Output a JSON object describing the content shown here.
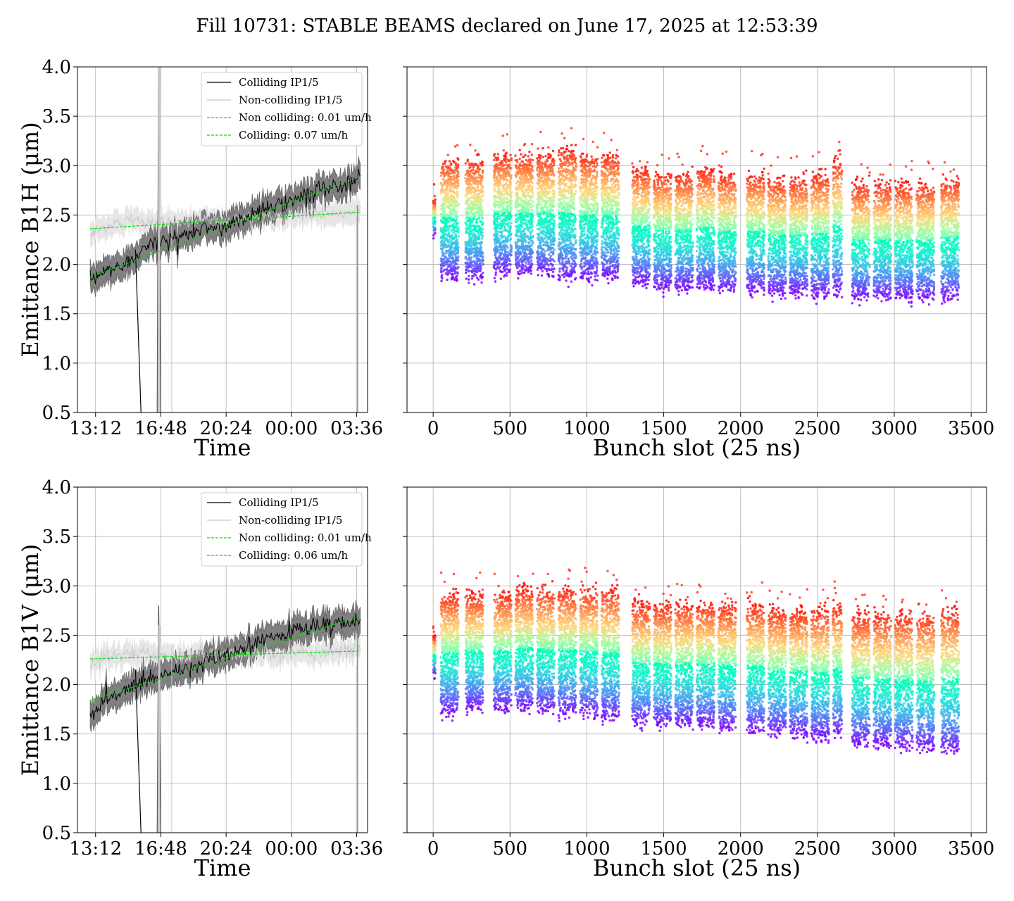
{
  "figure": {
    "title": "Fill 10731: STABLE BEAMS declared on June 17, 2025 at 12:53:39"
  },
  "colors": {
    "colliding": "#000000",
    "colliding_band": "#808080",
    "non_colliding": "#c8c8c8",
    "non_colliding_band": "#e6e6e6",
    "fit": "#00e000",
    "grid": "#b0b0b0"
  },
  "chart_data": [
    {
      "type": "line",
      "row": "B1H",
      "ylabel": "Emittance B1H (μm)",
      "xlabel": "Time",
      "x_tick_labels": [
        "13:12",
        "16:48",
        "20:24",
        "00:00",
        "03:36"
      ],
      "x_tick_hours": [
        0,
        3.6,
        7.2,
        10.8,
        14.4
      ],
      "xlim_hours": [
        -1.0,
        15.0
      ],
      "ylim": [
        0.5,
        4.0
      ],
      "yticks": [
        "0.5",
        "1.0",
        "1.5",
        "2.0",
        "2.5",
        "3.0",
        "3.5",
        "4.0"
      ],
      "grid": true,
      "legend_position": "top-right",
      "legend": [
        "Colliding IP1/5",
        "Non-colliding IP1/5",
        "Non colliding: 0.01 um/h",
        "Colliding: 0.07 um/h"
      ],
      "series": [
        {
          "name": "Colliding IP1/5",
          "x": [
            -0.3,
            0.5,
            1.0,
            1.5,
            2.0,
            2.2,
            3.0,
            4.0,
            5.0,
            6.0,
            7.0,
            8.0,
            9.0,
            10.0,
            11.0,
            12.0,
            13.0,
            14.0,
            14.6
          ],
          "y": [
            1.82,
            1.93,
            1.96,
            2.0,
            2.05,
            2.12,
            2.2,
            2.25,
            2.3,
            2.37,
            2.38,
            2.45,
            2.55,
            2.6,
            2.65,
            2.72,
            2.78,
            2.85,
            2.88
          ]
        },
        {
          "name": "Non-colliding IP1/5",
          "x": [
            -0.3,
            1.0,
            2.0,
            3.0,
            4.0,
            5.0,
            6.0,
            7.0,
            8.0,
            9.0,
            10.0,
            11.0,
            12.0,
            13.0,
            14.0,
            14.6
          ],
          "y": [
            2.32,
            2.4,
            2.45,
            2.42,
            2.43,
            2.42,
            2.45,
            2.44,
            2.46,
            2.5,
            2.47,
            2.5,
            2.52,
            2.5,
            2.53,
            2.52
          ]
        },
        {
          "name": "Non colliding: 0.01 um/h",
          "x": [
            -0.3,
            14.6
          ],
          "y": [
            2.36,
            2.53
          ]
        },
        {
          "name": "Colliding: 0.07 um/h",
          "x": [
            -0.3,
            14.6
          ],
          "y": [
            1.87,
            2.89
          ]
        }
      ]
    },
    {
      "type": "scatter",
      "row": "B1H",
      "xlabel": "Bunch slot (25 ns)",
      "x_tick_labels": [
        "0",
        "500",
        "1000",
        "1500",
        "2000",
        "2500",
        "3000",
        "3500"
      ],
      "xlim": [
        -170,
        3600
      ],
      "ylim": [
        0.5,
        4.0
      ],
      "grid": true,
      "colormap": "rainbow",
      "trains": [
        {
          "start": 0,
          "end": 15,
          "low": 2.3,
          "high": 2.65,
          "mode": 2.45
        },
        {
          "start": 50,
          "end": 165,
          "low": 1.85,
          "high": 3.1
        },
        {
          "start": 210,
          "end": 325,
          "low": 1.85,
          "high": 3.1
        },
        {
          "start": 395,
          "end": 510,
          "low": 1.9,
          "high": 3.15
        },
        {
          "start": 535,
          "end": 650,
          "low": 1.9,
          "high": 3.15
        },
        {
          "start": 675,
          "end": 790,
          "low": 1.9,
          "high": 3.15
        },
        {
          "start": 815,
          "end": 930,
          "low": 1.85,
          "high": 3.2
        },
        {
          "start": 955,
          "end": 1070,
          "low": 1.85,
          "high": 3.15
        },
        {
          "start": 1095,
          "end": 1210,
          "low": 1.85,
          "high": 3.15
        },
        {
          "start": 1295,
          "end": 1410,
          "low": 1.8,
          "high": 3.0
        },
        {
          "start": 1435,
          "end": 1550,
          "low": 1.75,
          "high": 2.95
        },
        {
          "start": 1575,
          "end": 1690,
          "low": 1.75,
          "high": 2.95
        },
        {
          "start": 1715,
          "end": 1830,
          "low": 1.75,
          "high": 3.0
        },
        {
          "start": 1855,
          "end": 1970,
          "low": 1.72,
          "high": 2.95
        },
        {
          "start": 2040,
          "end": 2155,
          "low": 1.72,
          "high": 2.95
        },
        {
          "start": 2180,
          "end": 2295,
          "low": 1.7,
          "high": 2.9
        },
        {
          "start": 2320,
          "end": 2435,
          "low": 1.7,
          "high": 2.9
        },
        {
          "start": 2460,
          "end": 2575,
          "low": 1.68,
          "high": 2.95
        },
        {
          "start": 2600,
          "end": 2660,
          "low": 1.7,
          "high": 3.1
        },
        {
          "start": 2725,
          "end": 2840,
          "low": 1.65,
          "high": 2.85
        },
        {
          "start": 2865,
          "end": 2980,
          "low": 1.65,
          "high": 2.85
        },
        {
          "start": 3005,
          "end": 3120,
          "low": 1.65,
          "high": 2.85
        },
        {
          "start": 3145,
          "end": 3260,
          "low": 1.65,
          "high": 2.85
        },
        {
          "start": 3305,
          "end": 3420,
          "low": 1.65,
          "high": 2.9
        }
      ]
    },
    {
      "type": "line",
      "row": "B1V",
      "ylabel": "Emittance B1V (μm)",
      "xlabel": "Time",
      "x_tick_labels": [
        "13:12",
        "16:48",
        "20:24",
        "00:00",
        "03:36"
      ],
      "x_tick_hours": [
        0,
        3.6,
        7.2,
        10.8,
        14.4
      ],
      "xlim_hours": [
        -1.0,
        15.0
      ],
      "ylim": [
        0.5,
        4.0
      ],
      "yticks": [
        "0.5",
        "1.0",
        "1.5",
        "2.0",
        "2.5",
        "3.0",
        "3.5",
        "4.0"
      ],
      "grid": true,
      "legend_position": "top-right",
      "legend": [
        "Colliding IP1/5",
        "Non-colliding IP1/5",
        "Non colliding: 0.01 um/h",
        "Colliding: 0.06 um/h"
      ],
      "series": [
        {
          "name": "Colliding IP1/5",
          "x": [
            -0.3,
            0.5,
            1.0,
            1.5,
            2.0,
            2.2,
            3.0,
            4.0,
            5.0,
            6.0,
            7.0,
            8.0,
            9.0,
            10.0,
            11.0,
            12.0,
            13.0,
            14.0,
            14.6
          ],
          "y": [
            1.68,
            1.85,
            1.88,
            1.92,
            1.98,
            2.0,
            2.05,
            2.1,
            2.15,
            2.22,
            2.28,
            2.35,
            2.42,
            2.48,
            2.55,
            2.58,
            2.6,
            2.63,
            2.65
          ]
        },
        {
          "name": "Non-colliding IP1/5",
          "x": [
            -0.3,
            1.0,
            2.0,
            3.0,
            4.0,
            5.0,
            6.0,
            7.0,
            8.0,
            9.0,
            10.0,
            11.0,
            12.0,
            13.0,
            14.0,
            14.6
          ],
          "y": [
            2.22,
            2.3,
            2.33,
            2.3,
            2.28,
            2.29,
            2.3,
            2.31,
            2.3,
            2.32,
            2.31,
            2.33,
            2.32,
            2.33,
            2.34,
            2.33
          ]
        },
        {
          "name": "Non colliding: 0.01 um/h",
          "x": [
            -0.3,
            14.6
          ],
          "y": [
            2.26,
            2.34
          ]
        },
        {
          "name": "Colliding: 0.06 um/h",
          "x": [
            -0.3,
            14.6
          ],
          "y": [
            1.84,
            2.69
          ]
        }
      ]
    },
    {
      "type": "scatter",
      "row": "B1V",
      "xlabel": "Bunch slot (25 ns)",
      "x_tick_labels": [
        "0",
        "500",
        "1000",
        "1500",
        "2000",
        "2500",
        "3000",
        "3500"
      ],
      "xlim": [
        -170,
        3600
      ],
      "ylim": [
        0.5,
        4.0
      ],
      "grid": true,
      "colormap": "rainbow",
      "trains": [
        {
          "start": 0,
          "end": 15,
          "low": 2.1,
          "high": 2.5,
          "mode": 2.35
        },
        {
          "start": 50,
          "end": 165,
          "low": 1.7,
          "high": 2.95
        },
        {
          "start": 210,
          "end": 325,
          "low": 1.75,
          "high": 2.95
        },
        {
          "start": 395,
          "end": 510,
          "low": 1.75,
          "high": 2.95
        },
        {
          "start": 535,
          "end": 650,
          "low": 1.75,
          "high": 3.0
        },
        {
          "start": 675,
          "end": 790,
          "low": 1.72,
          "high": 3.0
        },
        {
          "start": 815,
          "end": 930,
          "low": 1.7,
          "high": 3.0
        },
        {
          "start": 955,
          "end": 1070,
          "low": 1.68,
          "high": 3.0
        },
        {
          "start": 1095,
          "end": 1210,
          "low": 1.65,
          "high": 3.0
        },
        {
          "start": 1295,
          "end": 1410,
          "low": 1.6,
          "high": 2.85
        },
        {
          "start": 1435,
          "end": 1550,
          "low": 1.58,
          "high": 2.85
        },
        {
          "start": 1575,
          "end": 1690,
          "low": 1.58,
          "high": 2.85
        },
        {
          "start": 1715,
          "end": 1830,
          "low": 1.58,
          "high": 2.85
        },
        {
          "start": 1855,
          "end": 1970,
          "low": 1.55,
          "high": 2.85
        },
        {
          "start": 2040,
          "end": 2155,
          "low": 1.52,
          "high": 2.85
        },
        {
          "start": 2180,
          "end": 2295,
          "low": 1.5,
          "high": 2.8
        },
        {
          "start": 2320,
          "end": 2435,
          "low": 1.48,
          "high": 2.8
        },
        {
          "start": 2460,
          "end": 2575,
          "low": 1.45,
          "high": 2.8
        },
        {
          "start": 2600,
          "end": 2660,
          "low": 1.48,
          "high": 2.85
        },
        {
          "start": 2725,
          "end": 2840,
          "low": 1.4,
          "high": 2.75
        },
        {
          "start": 2865,
          "end": 2980,
          "low": 1.38,
          "high": 2.75
        },
        {
          "start": 3005,
          "end": 3120,
          "low": 1.36,
          "high": 2.75
        },
        {
          "start": 3145,
          "end": 3260,
          "low": 1.34,
          "high": 2.75
        },
        {
          "start": 3305,
          "end": 3420,
          "low": 1.32,
          "high": 2.8
        }
      ]
    }
  ]
}
